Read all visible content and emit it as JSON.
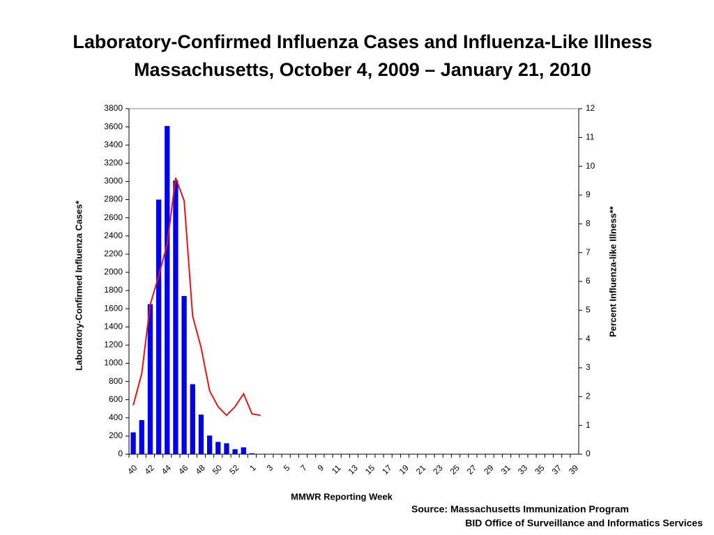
{
  "chart_data": {
    "type": "bar+line",
    "title": "Laboratory-Confirmed Influenza Cases and Influenza-Like Illness",
    "subtitle": "Massachusetts, October 4, 2009 – January 21, 2010",
    "x_label": "MMWR Reporting Week",
    "y_label": "Laboratory-Confirmed Influenza Cases*",
    "y2_label": "Percent Influenza-like Illness**",
    "source": [
      "Source: Massachusetts Immunization Program",
      "BID Office of Surveillance and Informatics Services"
    ],
    "categories": [
      "40",
      null,
      "42",
      null,
      "44",
      null,
      "46",
      null,
      "48",
      null,
      "50",
      null,
      "52",
      null,
      "1",
      null,
      "3",
      null,
      "5",
      null,
      "7",
      null,
      "9",
      null,
      "11",
      null,
      "13",
      null,
      "15",
      null,
      "17",
      null,
      "19",
      null,
      "21",
      null,
      "23",
      null,
      "25",
      null,
      "27",
      null,
      "29",
      null,
      "31",
      null,
      "33",
      null,
      "35",
      null,
      "37",
      null,
      "39"
    ],
    "series": [
      {
        "type": "bar",
        "color": "#0000ee",
        "values": [
          240,
          375,
          1650,
          2800,
          3610,
          3010,
          1740,
          770,
          435,
          205,
          135,
          120,
          55,
          75,
          10,
          null,
          null,
          null,
          null,
          null,
          null,
          null,
          null,
          null,
          null,
          null,
          null,
          null,
          null,
          null,
          null,
          null,
          null,
          null,
          null,
          null,
          null,
          null,
          null,
          null,
          null,
          null,
          null,
          null,
          null,
          null,
          null,
          null,
          null,
          null,
          null,
          null,
          null
        ]
      },
      {
        "type": "line",
        "axis": "y2",
        "color": "#ee1111",
        "values": [
          1.7,
          2.8,
          5.2,
          6.2,
          7.3,
          9.6,
          8.8,
          4.8,
          3.7,
          2.2,
          1.65,
          1.35,
          1.65,
          2.1,
          1.4,
          1.35,
          null,
          null,
          null,
          null,
          null,
          null,
          null,
          null,
          null,
          null,
          null,
          null,
          null,
          null,
          null,
          null,
          null,
          null,
          null,
          null,
          null,
          null,
          null,
          null,
          null,
          null,
          null,
          null,
          null,
          null,
          null,
          null,
          null,
          null,
          null,
          null,
          null
        ]
      }
    ],
    "ylim": [
      0,
      3800
    ],
    "yticks": [
      0,
      200,
      400,
      600,
      800,
      1000,
      1200,
      1400,
      1600,
      1800,
      2000,
      2200,
      2400,
      2600,
      2800,
      3000,
      3200,
      3400,
      3600,
      3800
    ],
    "y2lim": [
      0,
      12
    ],
    "y2ticks": [
      0,
      1,
      2,
      3,
      4,
      5,
      6,
      7,
      8,
      9,
      10,
      11,
      12
    ]
  }
}
